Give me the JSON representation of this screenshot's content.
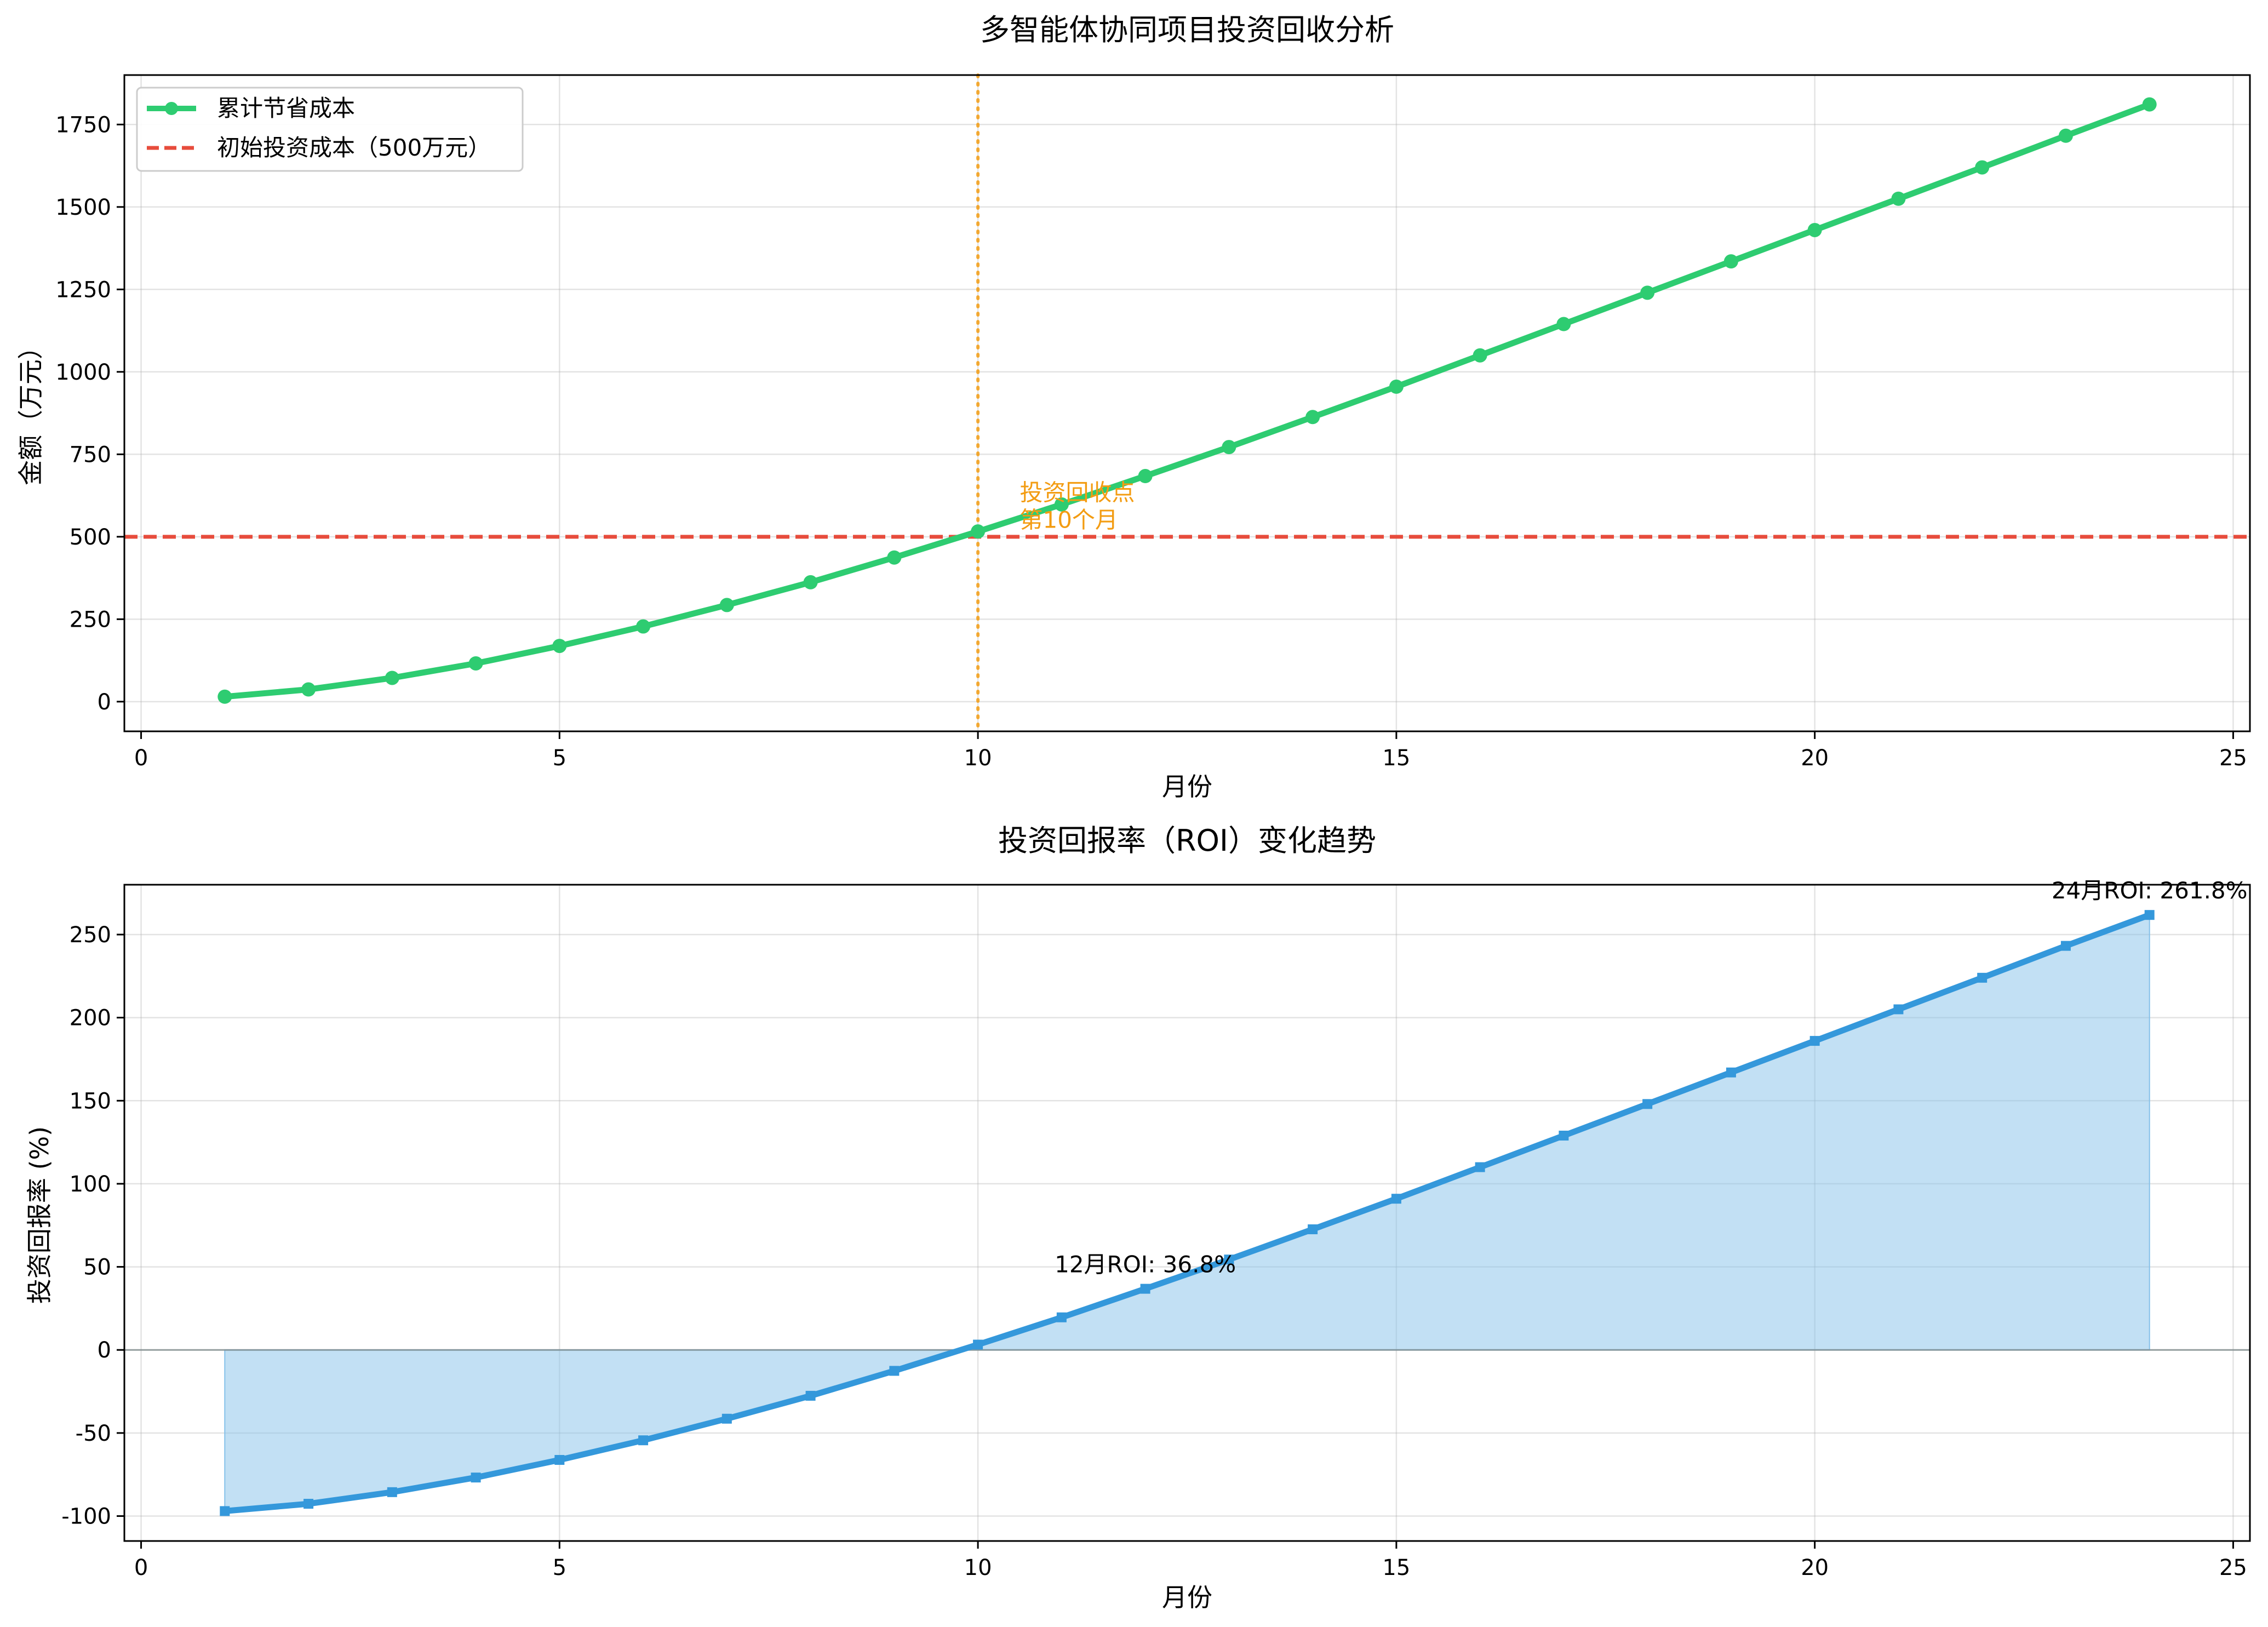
{
  "chart_data": [
    {
      "type": "line",
      "title": "多智能体协同项目投资回收分析",
      "xlabel": "月份",
      "ylabel": "金额（万元）",
      "xlim": [
        -0.2,
        25.2
      ],
      "ylim": [
        -90,
        1900
      ],
      "x_ticks": [
        0,
        5,
        10,
        15,
        20,
        25
      ],
      "y_ticks": [
        0,
        250,
        500,
        750,
        1000,
        1250,
        1500,
        1750
      ],
      "grid": true,
      "legend_position": "top-left",
      "x": [
        1,
        2,
        3,
        4,
        5,
        6,
        7,
        8,
        9,
        10,
        11,
        12,
        13,
        14,
        15,
        16,
        17,
        18,
        19,
        20,
        21,
        22,
        23,
        24
      ],
      "series": [
        {
          "name": "累计节省成本",
          "color": "#2ecc71",
          "marker": "circle",
          "values": [
            15,
            37,
            72,
            116,
            169,
            228,
            293,
            362,
            437,
            516,
            598,
            684,
            772,
            863,
            955,
            1050,
            1145,
            1240,
            1335,
            1430,
            1525,
            1620,
            1716,
            1811
          ]
        }
      ],
      "reference_lines": [
        {
          "name": "初始投资成本（500万元）",
          "orientation": "horizontal",
          "value": 500,
          "style": "dashed",
          "color": "#e74c3c"
        },
        {
          "orientation": "vertical",
          "value": 10,
          "style": "dotted",
          "color": "#f39c12"
        }
      ],
      "annotations": [
        {
          "lines": [
            "投资回收点",
            "第10个月"
          ],
          "x": 10.5,
          "y": 610,
          "color": "#f39c12"
        }
      ]
    },
    {
      "type": "area",
      "title": "投资回报率（ROI）变化趋势",
      "xlabel": "月份",
      "ylabel": "投资回报率 (%)",
      "xlim": [
        -0.2,
        25.2
      ],
      "ylim": [
        -115,
        280
      ],
      "x_ticks": [
        0,
        5,
        10,
        15,
        20,
        25
      ],
      "y_ticks": [
        -100,
        -50,
        0,
        50,
        100,
        150,
        200,
        250
      ],
      "grid": true,
      "x": [
        1,
        2,
        3,
        4,
        5,
        6,
        7,
        8,
        9,
        10,
        11,
        12,
        13,
        14,
        15,
        16,
        17,
        18,
        19,
        20,
        21,
        22,
        23,
        24
      ],
      "series": [
        {
          "color": "#3498db",
          "fill_color": "#85c1e9",
          "marker": "square",
          "values": [
            -97,
            -92.6,
            -85.6,
            -76.8,
            -66.2,
            -54.4,
            -41.4,
            -27.6,
            -12.6,
            3.2,
            19.6,
            36.8,
            54.4,
            72.6,
            91,
            110,
            129,
            148,
            167,
            186,
            205,
            224,
            243.2,
            261.8
          ]
        }
      ],
      "baseline": 0,
      "annotations": [
        {
          "text": "12月ROI: 36.8%",
          "x": 12,
          "y": 36.8
        },
        {
          "text": "24月ROI: 261.8%",
          "x": 24,
          "y": 261.8
        }
      ]
    }
  ]
}
